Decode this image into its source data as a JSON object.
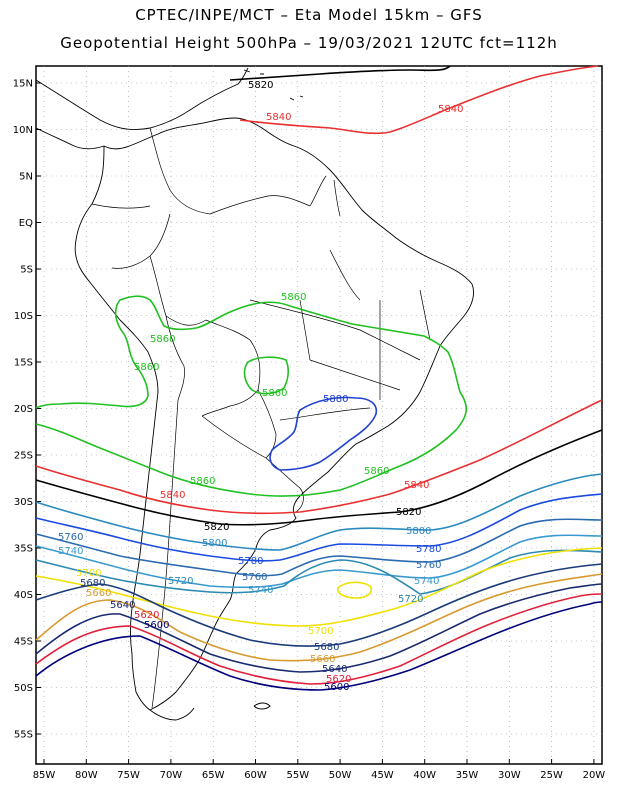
{
  "header": {
    "title_line1": "CPTEC/INPE/MCT –  Eta Model 15km – GFS",
    "title_line2": "Geopotential Height 500hPa – 19/03/2021 12UTC fct=112h"
  },
  "map": {
    "lat_labels": [
      "15N",
      "10N",
      "5N",
      "EQ",
      "5S",
      "10S",
      "15S",
      "20S",
      "25S",
      "30S",
      "35S",
      "40S",
      "45S",
      "50S",
      "55S"
    ],
    "lon_labels": [
      "85W",
      "80W",
      "75W",
      "70W",
      "65W",
      "60W",
      "55W",
      "50W",
      "45W",
      "40W",
      "35W",
      "30W",
      "25W",
      "20W"
    ]
  },
  "colors": {
    "c5600": "#00007a",
    "c5620": "#e0203a",
    "c5640": "#1a2a70",
    "c5660": "#d89a30",
    "c5680": "#1a3a7a",
    "c5700": "#f0e000",
    "c5720": "#2a8ab0",
    "c5740": "#3a9ad0",
    "c5760": "#2a6ab0",
    "c5780": "#1a4ae0",
    "c5800": "#2a8ac0",
    "c5820": "#000000",
    "c5840": "#e83030",
    "c5860": "#20c020",
    "c5880": "#2040d0"
  },
  "contours": {
    "l5820_top": "5820",
    "l5840_top": "5840",
    "l5840_top2": "5840",
    "l5860_a": "5860",
    "l5860_b": "5860",
    "l5860_c": "5860",
    "l5860_d": "5860",
    "l5860_e": "5860",
    "l5860_f": "5860",
    "l5880": "5880",
    "l5840_s1": "5840",
    "l5840_s2": "5840",
    "l5820_s1": "5820",
    "l5820_s2": "5820",
    "l5800_a": "5800",
    "l5800_b": "5800",
    "l5780_a": "5780",
    "l5780_b": "5780",
    "l5760_a": "5760",
    "l5760_b": "5760",
    "l5760_c": "5760",
    "l5740_a": "5740",
    "l5740_b": "5740",
    "l5740_c": "5740",
    "l5720_a": "5720",
    "l5720_b": "5720",
    "l5700_a": "5700",
    "l5700_b": "5700",
    "l5680_a": "5680",
    "l5680_b": "5680",
    "l5660_a": "5660",
    "l5660_b": "5660",
    "l5640_a": "5640",
    "l5640_b": "5640",
    "l5620_a": "5620",
    "l5620_b": "5620",
    "l5600_a": "5600",
    "l5600_b": "5600"
  }
}
